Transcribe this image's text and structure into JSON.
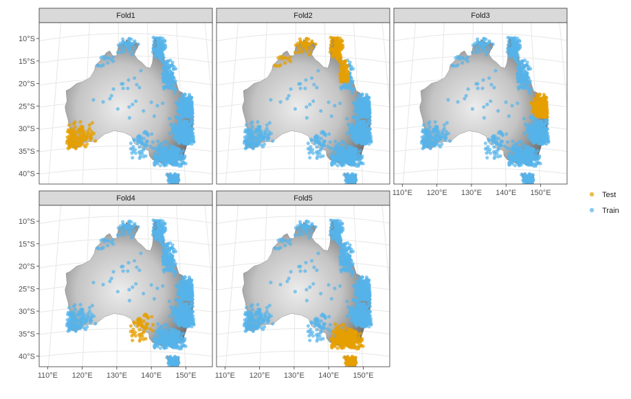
{
  "chart_data": {
    "type": "scatter",
    "title": "",
    "xlabel": "",
    "ylabel": "",
    "facets": [
      "Fold1",
      "Fold2",
      "Fold3",
      "Fold4",
      "Fold5"
    ],
    "x_ticks": [
      "110°E",
      "120°E",
      "130°E",
      "140°E",
      "150°E"
    ],
    "y_ticks": [
      "10°S",
      "15°S",
      "20°S",
      "25°S",
      "30°S",
      "35°S",
      "40°S"
    ],
    "xlim": [
      108,
      158
    ],
    "ylim": [
      -43,
      -8
    ],
    "legend": {
      "position": "right",
      "entries": [
        {
          "name": "Test",
          "color": "#E69F00"
        },
        {
          "name": "Train",
          "color": "#56B4E9"
        }
      ]
    },
    "test_regions": {
      "Fold1": "south-west Western Australia",
      "Fold2": "northern Australia / Cape York",
      "Fold3": "south-east Queensland",
      "Fold4": "South Australia / western Victoria",
      "Fold5": "Victoria / southern NSW / Tasmania"
    },
    "background": "grey elevation raster",
    "grid": true
  }
}
